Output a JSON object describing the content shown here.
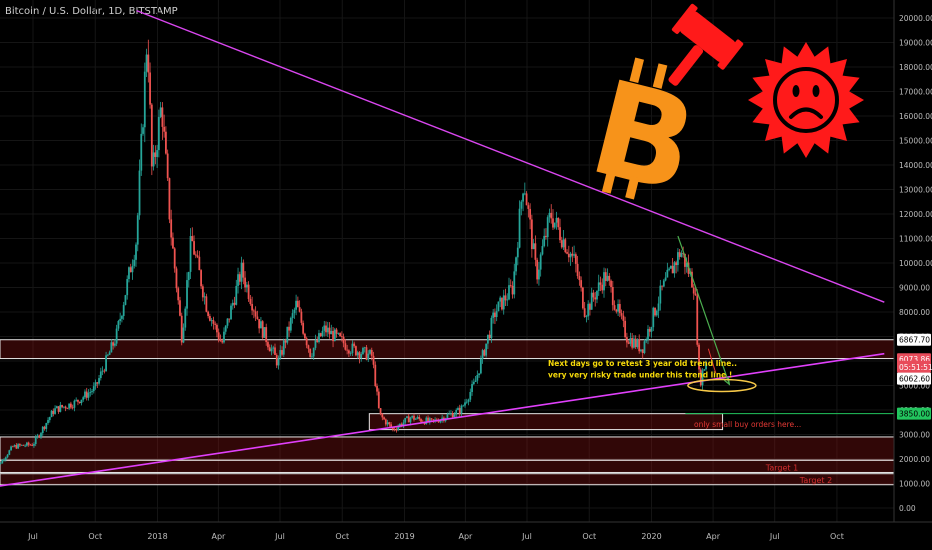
{
  "chart_data": {
    "type": "candlestick",
    "title": "Bitcoin / U.S. Dollar, 1D, BITSTAMP",
    "y_axis": {
      "ticks": [
        20000,
        19000,
        18000,
        17000,
        16000,
        15000,
        14000,
        13000,
        12000,
        11000,
        10000,
        9000,
        8000,
        7000,
        6000,
        5000,
        4000,
        3000,
        2000,
        1000,
        0
      ],
      "tick_labels": [
        "20000.00",
        "19000.00",
        "18000.00",
        "17000.00",
        "16000.00",
        "15000.00",
        "14000.00",
        "13000.00",
        "12000.00",
        "11000.00",
        "10000.00",
        "9000.00",
        "8000.00",
        "7000.00",
        "6000.00",
        "5000.00",
        "4000.00",
        "3000.00",
        "2000.00",
        "1000.00",
        "0.00"
      ],
      "range": [
        -800,
        20500
      ]
    },
    "x_axis": {
      "tick_labels": [
        "Jul",
        "Oct",
        "2018",
        "Apr",
        "Jul",
        "Oct",
        "2019",
        "Apr",
        "Jul",
        "Oct",
        "2020",
        "Apr",
        "Jul",
        "Oct"
      ],
      "tick_dates": [
        "2017-07-01",
        "2017-10-01",
        "2018-01-01",
        "2018-04-01",
        "2018-07-01",
        "2018-10-01",
        "2019-01-01",
        "2019-04-01",
        "2019-07-01",
        "2019-10-01",
        "2020-01-01",
        "2020-04-01",
        "2020-07-01",
        "2020-10-01"
      ]
    },
    "price_path": [
      {
        "date": "2017-05-01",
        "close": 1400
      },
      {
        "date": "2017-06-01",
        "close": 2500
      },
      {
        "date": "2017-07-01",
        "close": 2600
      },
      {
        "date": "2017-08-01",
        "close": 4000
      },
      {
        "date": "2017-09-01",
        "close": 4300
      },
      {
        "date": "2017-10-01",
        "close": 4900
      },
      {
        "date": "2017-11-01",
        "close": 7000
      },
      {
        "date": "2017-12-01",
        "close": 11000
      },
      {
        "date": "2017-12-17",
        "close": 19500
      },
      {
        "date": "2017-12-24",
        "close": 13500
      },
      {
        "date": "2018-01-07",
        "close": 16500
      },
      {
        "date": "2018-01-20",
        "close": 11500
      },
      {
        "date": "2018-02-06",
        "close": 7000
      },
      {
        "date": "2018-02-20",
        "close": 11000
      },
      {
        "date": "2018-03-15",
        "close": 8200
      },
      {
        "date": "2018-04-06",
        "close": 6700
      },
      {
        "date": "2018-05-05",
        "close": 9700
      },
      {
        "date": "2018-06-01",
        "close": 7500
      },
      {
        "date": "2018-06-28",
        "close": 5900
      },
      {
        "date": "2018-07-25",
        "close": 8300
      },
      {
        "date": "2018-08-15",
        "close": 6300
      },
      {
        "date": "2018-09-05",
        "close": 7300
      },
      {
        "date": "2018-10-15",
        "close": 6500
      },
      {
        "date": "2018-11-14",
        "close": 6200
      },
      {
        "date": "2018-11-25",
        "close": 3800
      },
      {
        "date": "2018-12-15",
        "close": 3200
      },
      {
        "date": "2019-01-10",
        "close": 3700
      },
      {
        "date": "2019-02-10",
        "close": 3500
      },
      {
        "date": "2019-03-25",
        "close": 4000
      },
      {
        "date": "2019-04-15",
        "close": 5100
      },
      {
        "date": "2019-05-15",
        "close": 8000
      },
      {
        "date": "2019-06-10",
        "close": 9000
      },
      {
        "date": "2019-06-26",
        "close": 13500
      },
      {
        "date": "2019-07-15",
        "close": 9500
      },
      {
        "date": "2019-08-05",
        "close": 12000
      },
      {
        "date": "2019-09-10",
        "close": 10000
      },
      {
        "date": "2019-09-25",
        "close": 8000
      },
      {
        "date": "2019-10-25",
        "close": 9500
      },
      {
        "date": "2019-11-25",
        "close": 7000
      },
      {
        "date": "2019-12-18",
        "close": 6500
      },
      {
        "date": "2020-01-15",
        "close": 8800
      },
      {
        "date": "2020-02-13",
        "close": 10500
      },
      {
        "date": "2020-03-05",
        "close": 9000
      },
      {
        "date": "2020-03-12",
        "close": 5000
      },
      {
        "date": "2020-03-16",
        "close": 5500
      },
      {
        "date": "2020-03-23",
        "close": 6100
      }
    ],
    "resistance_line": [
      {
        "date": "2017-12-01",
        "price": 20300
      },
      {
        "date": "2020-12-10",
        "price": 8400
      }
    ],
    "support_line": [
      {
        "date": "2017-05-01",
        "price": 850
      },
      {
        "date": "2020-12-10",
        "price": 6300
      }
    ],
    "zones": [
      {
        "label": "",
        "low": 6100,
        "high": 6867.7
      },
      {
        "label": "",
        "low": 3200,
        "high": 3850
      },
      {
        "label": "",
        "low": 1950,
        "high": 2900
      },
      {
        "label": "Target 1",
        "low": 1450,
        "high": 1950
      },
      {
        "label": "Target 2",
        "low": 950,
        "high": 1400
      }
    ],
    "price_tags": [
      {
        "text": "6867.70",
        "price": 6867.7,
        "bg": "#ffffff",
        "fg": "#000000"
      },
      {
        "text": "6073.86",
        "price": 6073.86,
        "bg": "#e84b5a",
        "fg": "#ffffff"
      },
      {
        "text": "05:51:51",
        "price": 5760,
        "bg": "#e84b5a",
        "fg": "#ffffff"
      },
      {
        "text": "6062.60",
        "price": 5280,
        "bg": "#ffffff",
        "fg": "#000000"
      },
      {
        "text": "3850.00",
        "price": 3850,
        "bg": "#22c55e",
        "fg": "#000000"
      }
    ],
    "annotations": [
      {
        "text": "Next days go to retest 3 year old trend line..",
        "color": "#f5d90a"
      },
      {
        "text": "very very risky trade under this trend line !",
        "color": "#f5d90a"
      },
      {
        "text": "only small buy orders here...",
        "color": "#e53935"
      }
    ],
    "icons": [
      "bitcoin-logo",
      "judge-gavel-icon",
      "sad-sun-icon"
    ],
    "colors": {
      "up": "#26a69a",
      "down": "#ef5350",
      "resistance": "#d946ef",
      "support": "#e040fb",
      "bitcoin": "#f7931a",
      "icon_red": "#ff1a1a",
      "grid": "#151515"
    }
  }
}
